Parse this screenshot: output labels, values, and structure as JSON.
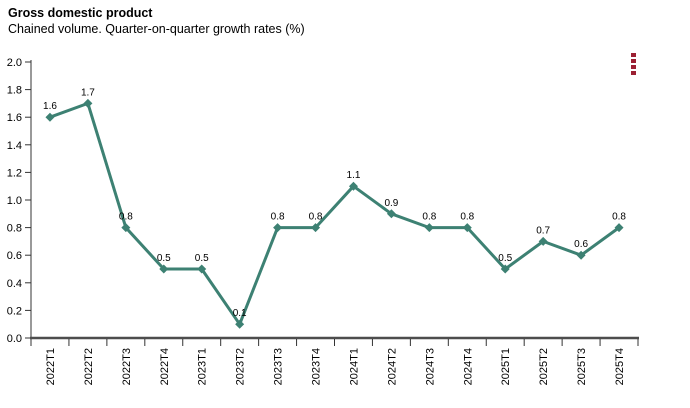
{
  "header": {
    "title": "Gross domestic product",
    "subtitle": "Chained volume. Quarter-on-quarter growth rates (%)"
  },
  "context_menu": {
    "icon": "kebab-menu-icon",
    "dot_count": 4,
    "color": "#9c2033"
  },
  "chart_data": {
    "type": "line",
    "title": "Gross domestic product",
    "subtitle": "Chained volume. Quarter-on-quarter growth rates (%)",
    "categories": [
      "2022T1",
      "2022T2",
      "2022T3",
      "2022T4",
      "2023T1",
      "2023T2",
      "2023T3",
      "2023T4",
      "2024T1",
      "2024T2",
      "2024T3",
      "2024T4",
      "2025T1",
      "2025T2",
      "2025T3",
      "2025T4"
    ],
    "values": [
      1.6,
      1.7,
      0.8,
      0.5,
      0.5,
      0.1,
      0.8,
      0.8,
      1.1,
      0.9,
      0.8,
      0.8,
      0.5,
      0.7,
      0.6,
      0.8
    ],
    "xlabel": "",
    "ylabel": "",
    "ylim": [
      0,
      2
    ],
    "ytick_step": 0.2,
    "grid": false,
    "legend": "none",
    "data_labels": true,
    "label_decimals": 1,
    "line_color": "#3d8173",
    "marker_shape": "diamond",
    "axis_color": "#333333",
    "x_axis_line_color": "#4d4d4d",
    "text_color": "#000000"
  }
}
